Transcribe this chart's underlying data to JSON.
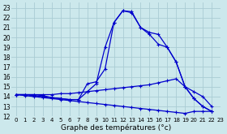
{
  "xlabel": "Graphe des températures (°c)",
  "bg_color": "#cce8ec",
  "grid_color": "#aaccd4",
  "line_color": "#0000cc",
  "xlim": [
    -0.5,
    23
  ],
  "ylim": [
    12,
    23.5
  ],
  "xticks": [
    0,
    1,
    2,
    3,
    4,
    5,
    6,
    7,
    8,
    9,
    10,
    11,
    12,
    13,
    14,
    15,
    16,
    17,
    18,
    19,
    20,
    21,
    22,
    23
  ],
  "yticks": [
    12,
    13,
    14,
    15,
    16,
    17,
    18,
    19,
    20,
    21,
    22,
    23
  ],
  "series": {
    "curve1": [
      14.2,
      14.2,
      14.2,
      14.1,
      13.9,
      13.8,
      13.7,
      13.7,
      15.3,
      15.5,
      16.8,
      21.5,
      22.7,
      22.6,
      21.0,
      20.3,
      19.3,
      19.0,
      17.5,
      15.0,
      13.8,
      13.0,
      12.5,
      null
    ],
    "curve2": [
      14.2,
      14.2,
      14.1,
      14.0,
      13.9,
      13.8,
      13.7,
      13.7,
      14.5,
      15.3,
      19.0,
      21.5,
      22.7,
      22.5,
      21.0,
      20.5,
      20.3,
      19.0,
      17.5,
      15.0,
      13.8,
      13.0,
      12.5,
      null
    ],
    "curve3": [
      14.2,
      14.2,
      14.2,
      14.2,
      14.2,
      14.3,
      14.3,
      14.4,
      14.5,
      14.6,
      14.7,
      14.8,
      14.9,
      15.0,
      15.1,
      15.2,
      15.4,
      15.6,
      15.8,
      15.0,
      14.5,
      14.0,
      13.0,
      null
    ],
    "curve4": [
      14.2,
      14.1,
      14.0,
      13.9,
      13.8,
      13.7,
      13.6,
      13.5,
      13.4,
      13.3,
      13.2,
      13.1,
      13.0,
      12.9,
      12.8,
      12.7,
      12.6,
      12.5,
      12.4,
      12.3,
      12.5,
      12.5,
      12.5,
      null
    ]
  }
}
